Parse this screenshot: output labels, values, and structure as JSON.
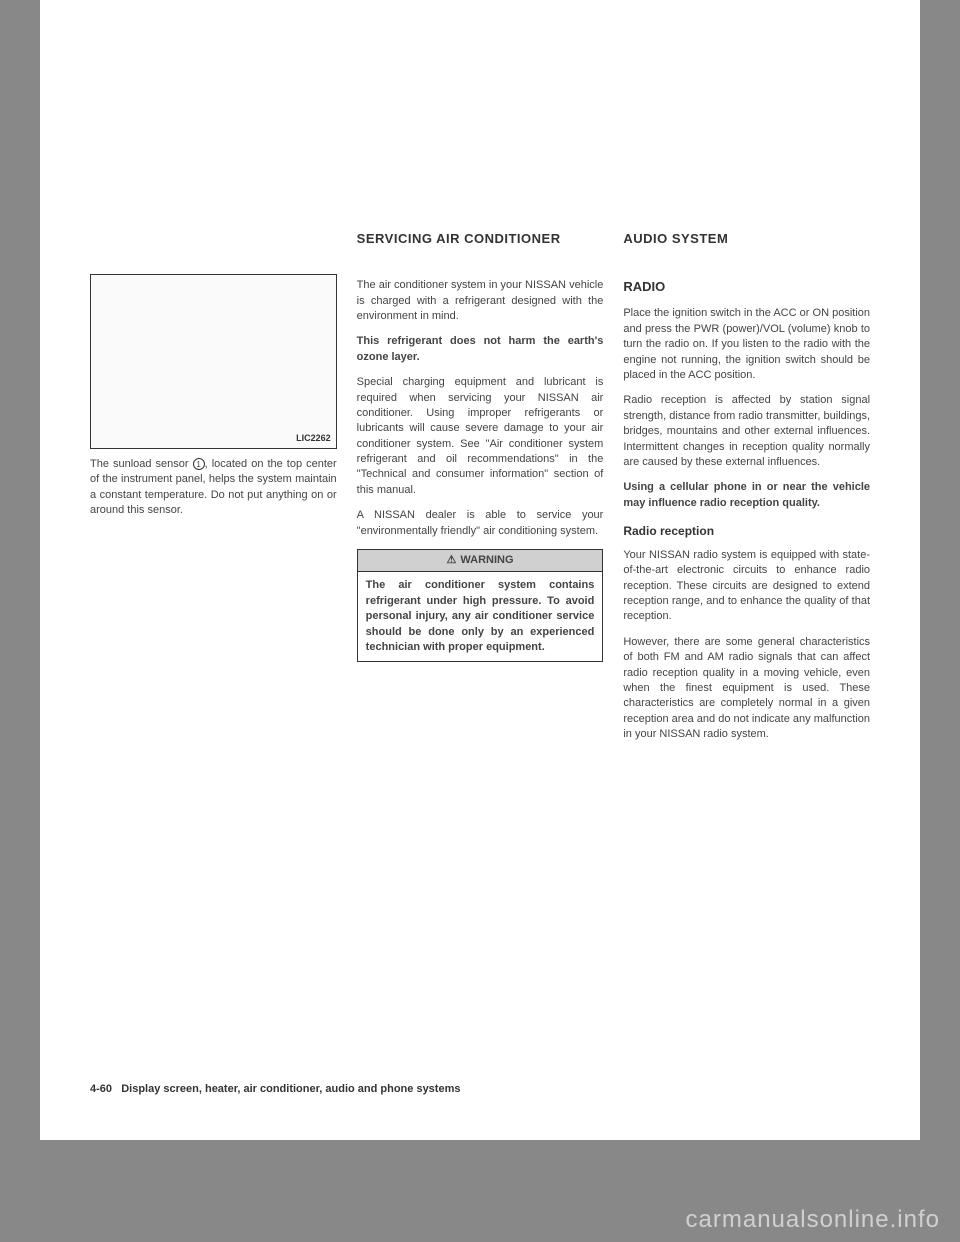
{
  "figure": {
    "label": "LIC2262"
  },
  "col1": {
    "caption": "The sunload sensor , located on the top center of the instrument panel, helps the system maintain a constant temperature. Do not put anything on or around this sensor."
  },
  "col2": {
    "title": "SERVICING AIR CONDITIONER",
    "p1": "The air conditioner system in your NISSAN vehicle is charged with a refrigerant designed with the environment in mind.",
    "p2": "This refrigerant does not harm the earth's ozone layer.",
    "p3": "Special charging equipment and lubricant is required when servicing your NISSAN air conditioner. Using improper refrigerants or lubricants will cause severe damage to your air conditioner system. See \"Air conditioner system refrigerant and oil recommendations\" in the \"Technical and consumer information\" section of this manual.",
    "p4": "A NISSAN dealer is able to service your \"environmentally friendly\" air conditioning system.",
    "warning_label": "WARNING",
    "warning_body": "The air conditioner system contains refrigerant under high pressure. To avoid personal injury, any air conditioner service should be done only by an experienced technician with proper equipment."
  },
  "col3": {
    "title": "AUDIO SYSTEM",
    "head": "RADIO",
    "p1": "Place the ignition switch in the ACC or ON position and press the PWR (power)/VOL (volume) knob to turn the radio on. If you listen to the radio with the engine not running, the ignition switch should be placed in the ACC position.",
    "p2": "Radio reception is affected by station signal strength, distance from radio transmitter, buildings, bridges, mountains and other external influences. Intermittent changes in reception quality normally are caused by these external influences.",
    "p3": "Using a cellular phone in or near the vehicle may influence radio reception quality.",
    "subhead": "Radio reception",
    "p4": "Your NISSAN radio system is equipped with state-of-the-art electronic circuits to enhance radio reception. These circuits are designed to extend reception range, and to enhance the quality of that reception.",
    "p5": "However, there are some general characteristics of both FM and AM radio signals that can affect radio reception quality in a moving vehicle, even when the finest equipment is used. These characteristics are completely normal in a given reception area and do not indicate any malfunction in your NISSAN radio system."
  },
  "footer": {
    "page_num": "4-60",
    "section": "Display screen, heater, air conditioner, audio and phone systems"
  },
  "watermark": "carmanualsonline.info"
}
